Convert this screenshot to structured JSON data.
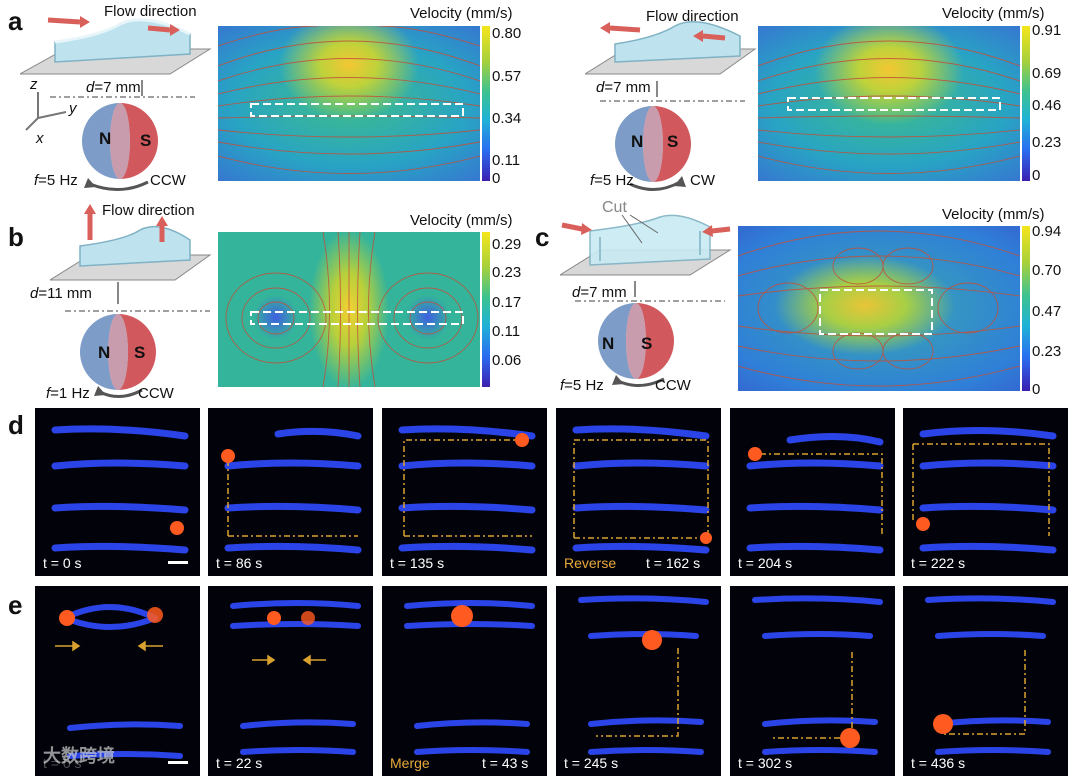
{
  "panels": {
    "a": {
      "label": "a",
      "left": {
        "flow_label": "Flow direction",
        "d_label": "d",
        "d_value": "=7 mm",
        "f_label": "f",
        "f_value": "=5 Hz",
        "rotation": "CCW",
        "north": "N",
        "south": "S",
        "axes": {
          "z": "z",
          "y": "y",
          "x": "x"
        },
        "cbar_title": "Velocity (mm/s)",
        "cbar_ticks": [
          "0.80",
          "0.57",
          "0.34",
          "0.11",
          "0"
        ]
      },
      "right": {
        "flow_label": "Flow direction",
        "d_label": "d",
        "d_value": "=7 mm",
        "f_label": "f",
        "f_value": "=5 Hz",
        "rotation": "CW",
        "north": "N",
        "south": "S",
        "cbar_title": "Velocity (mm/s)",
        "cbar_ticks": [
          "0.91",
          "0.69",
          "0.46",
          "0.23",
          "0"
        ]
      }
    },
    "b": {
      "label": "b",
      "flow_label": "Flow direction",
      "d_label": "d",
      "d_value": "=11 mm",
      "f_label": "f",
      "f_value": "=1 Hz",
      "rotation": "CCW",
      "north": "N",
      "south": "S",
      "cbar_title": "Velocity (mm/s)",
      "cbar_ticks": [
        "0.29",
        "0.23",
        "0.17",
        "0.11",
        "0.06"
      ]
    },
    "c": {
      "label": "c",
      "cut_label": "Cut",
      "d_label": "d",
      "d_value": "=7 mm",
      "f_label": "f",
      "f_value": "=5 Hz",
      "rotation": "CCW",
      "north": "N",
      "south": "S",
      "cbar_title": "Velocity (mm/s)",
      "cbar_ticks": [
        "0.94",
        "0.70",
        "0.47",
        "0.23",
        "0"
      ]
    },
    "d": {
      "label": "d",
      "frames": [
        {
          "time": "t = 0 s",
          "extra": ""
        },
        {
          "time": "t = 86 s",
          "extra": ""
        },
        {
          "time": "t = 135 s",
          "extra": ""
        },
        {
          "time": "t = 162 s",
          "extra": "Reverse"
        },
        {
          "time": "t = 204 s",
          "extra": ""
        },
        {
          "time": "t = 222 s",
          "extra": ""
        }
      ]
    },
    "e": {
      "label": "e",
      "watermark": "大数跨境",
      "frames": [
        {
          "time": "t = 0 s",
          "extra": ""
        },
        {
          "time": "t = 22 s",
          "extra": ""
        },
        {
          "time": "t = 43 s",
          "extra": "Merge"
        },
        {
          "time": "t = 245 s",
          "extra": ""
        },
        {
          "time": "t = 302 s",
          "extra": ""
        },
        {
          "time": "t = 436 s",
          "extra": ""
        }
      ]
    }
  },
  "colors": {
    "arrow_red": "#d9605a",
    "path_gold": "#d9a12f",
    "droplet": "#ff5a1f",
    "channel_blue": "#2f4cff",
    "sphere_blue": "#7d9cc7",
    "sphere_red": "#d1585c"
  }
}
